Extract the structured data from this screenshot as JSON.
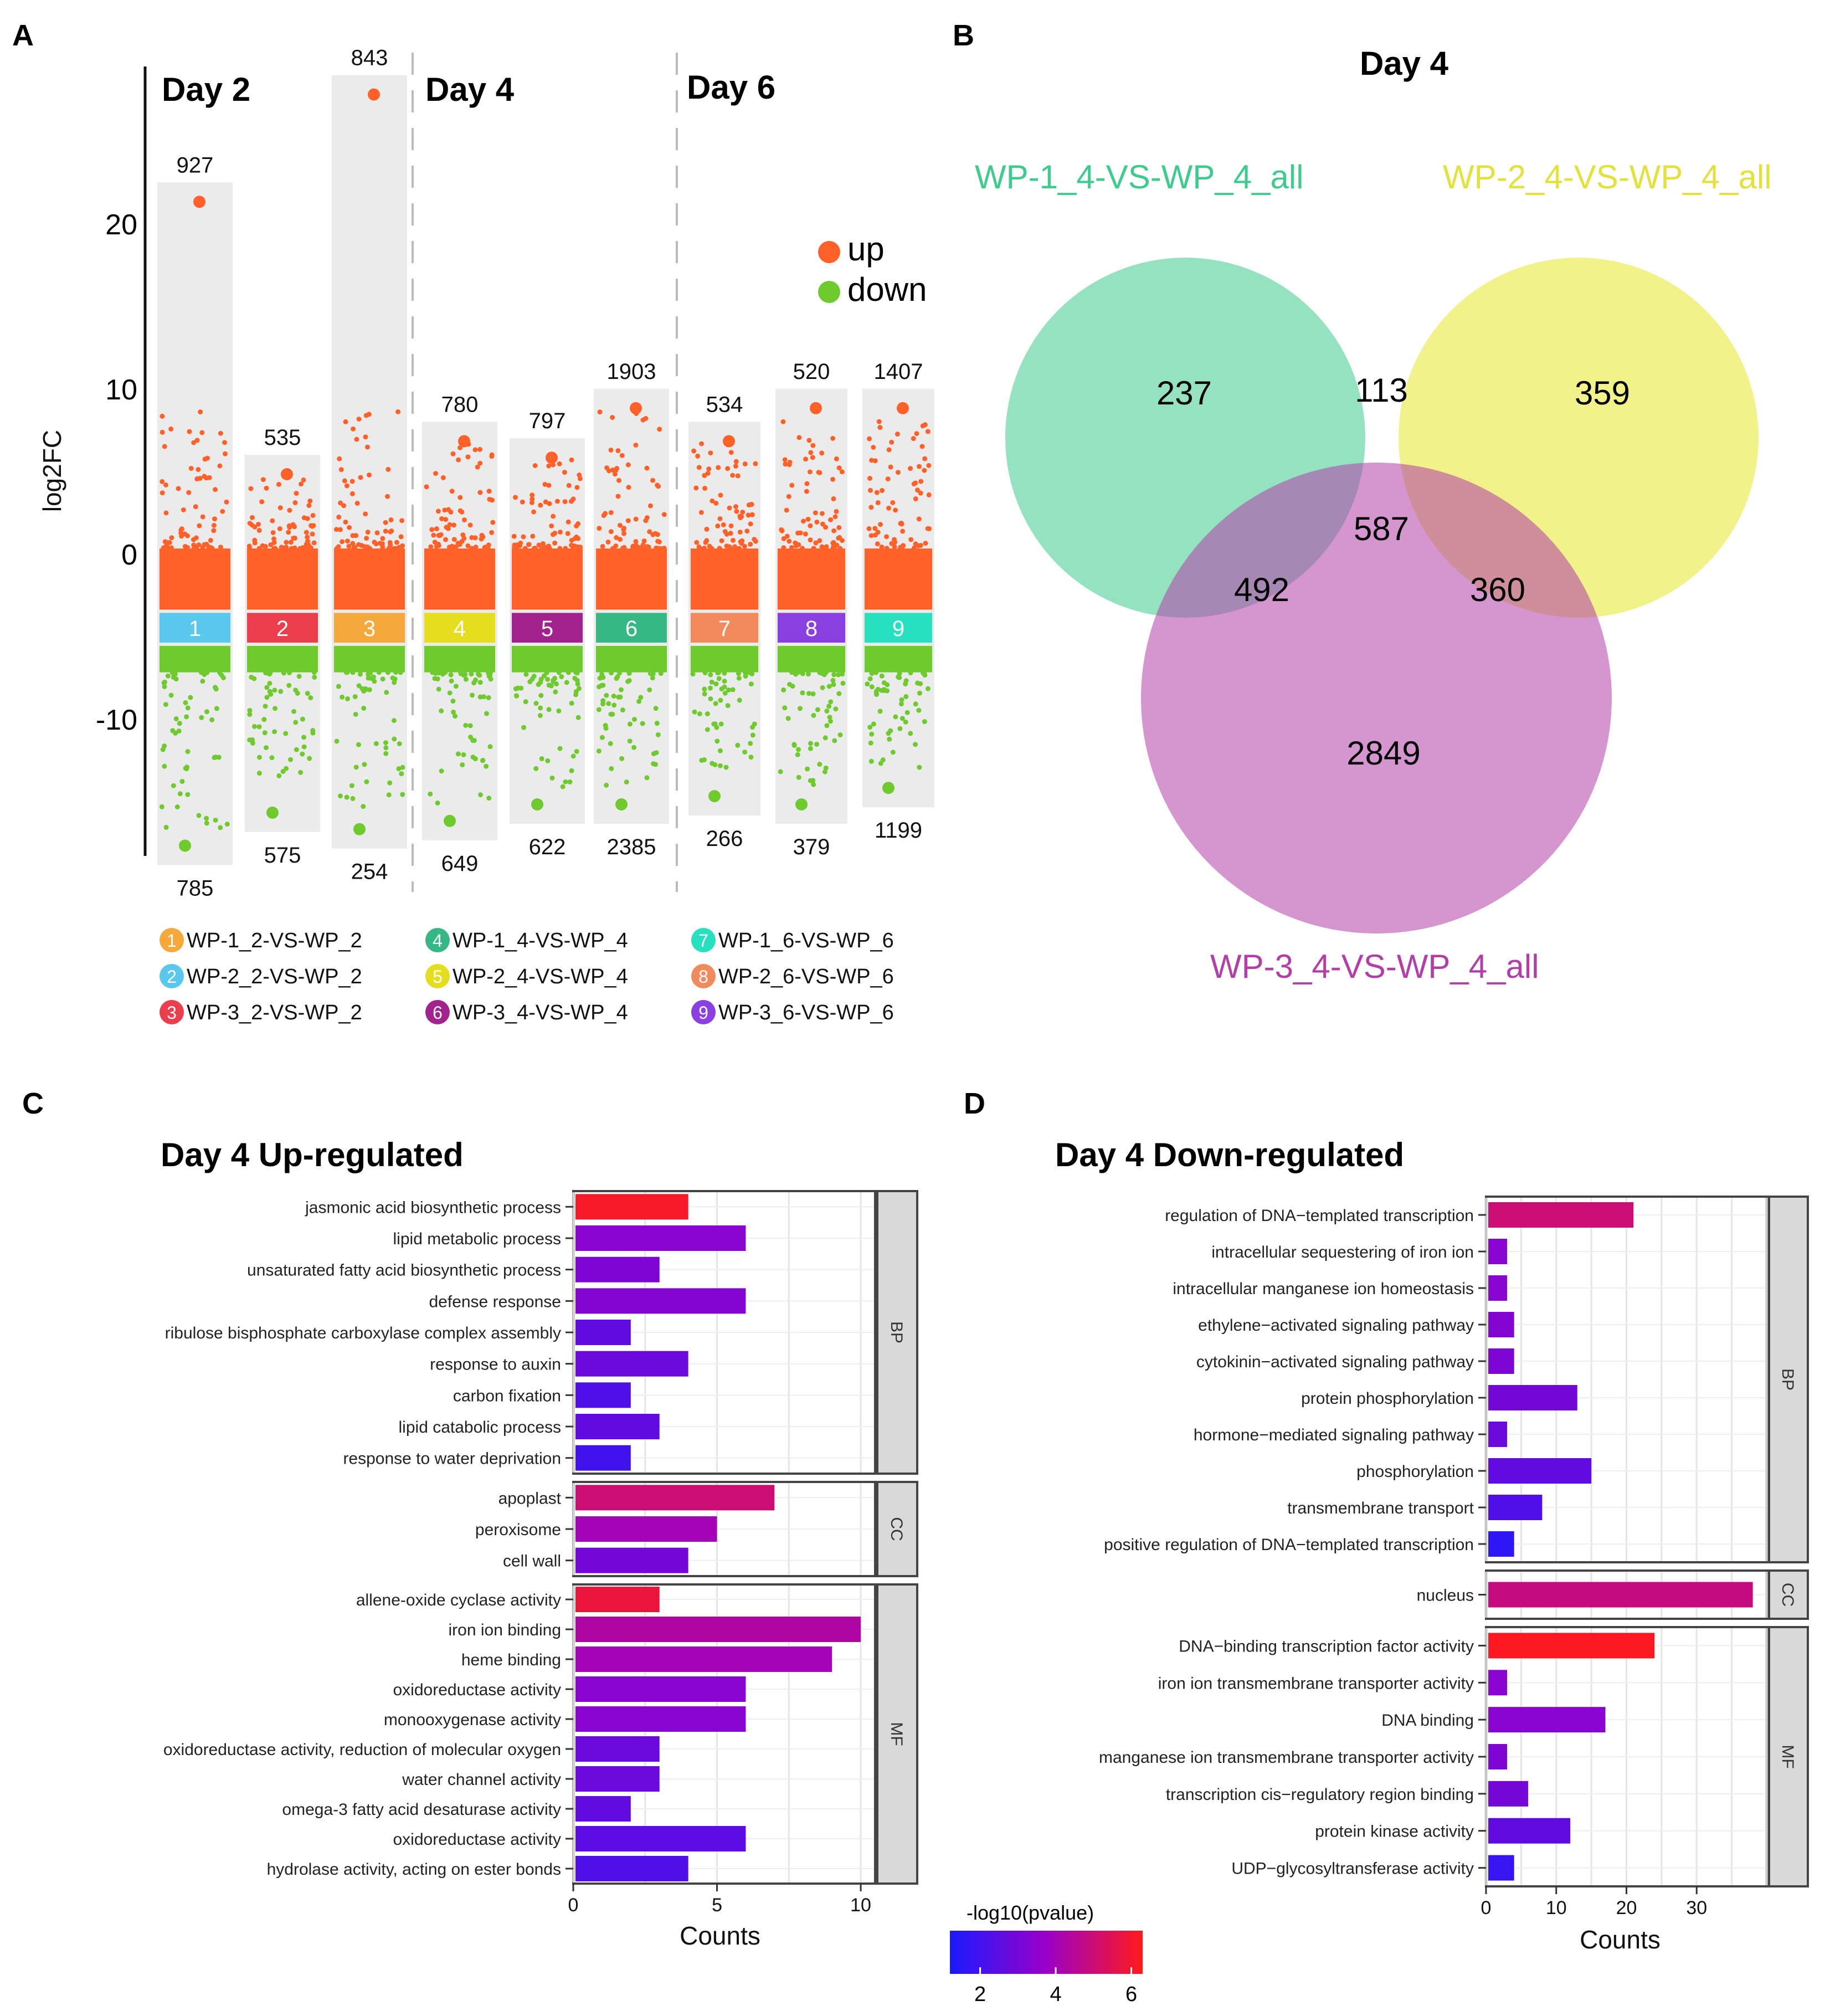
{
  "panels": {
    "A": "A",
    "B": "B",
    "C": "C",
    "D": "D"
  },
  "chart_data": [
    {
      "type": "scatter",
      "panel": "A",
      "ylabel": "log2FC",
      "yticks": [
        20,
        10,
        0,
        -10
      ],
      "ylim": [
        -18,
        30
      ],
      "day_labels": [
        "Day 2",
        "Day 4",
        "Day 6"
      ],
      "legend": [
        {
          "name": "up",
          "color": "#ff6128"
        },
        {
          "name": "down",
          "color": "#6fca2e"
        }
      ],
      "groups": [
        {
          "id": "1",
          "color": "#59c8ec",
          "up_count": "927",
          "down_count": "785",
          "max": 21.5,
          "min": -17.5
        },
        {
          "id": "2",
          "color": "#ea3e4c",
          "up_count": "535",
          "down_count": "575",
          "max": 5,
          "min": -15.5
        },
        {
          "id": "3",
          "color": "#f4a93a",
          "up_count": "843",
          "down_count": "254",
          "max": 28,
          "min": -16.5
        },
        {
          "id": "4",
          "color": "#e4de1e",
          "up_count": "780",
          "down_count": "649",
          "max": 7,
          "min": -16
        },
        {
          "id": "5",
          "color": "#a2228e",
          "up_count": "797",
          "down_count": "622",
          "max": 6,
          "min": -15
        },
        {
          "id": "6",
          "color": "#36b884",
          "up_count": "1903",
          "down_count": "2385",
          "max": 9,
          "min": -15
        },
        {
          "id": "7",
          "color": "#f18b5d",
          "up_count": "534",
          "down_count": "266",
          "max": 7,
          "min": -14.5
        },
        {
          "id": "8",
          "color": "#8a3fe0",
          "up_count": "520",
          "down_count": "379",
          "max": 9,
          "min": -15
        },
        {
          "id": "9",
          "color": "#26e0c0",
          "up_count": "1407",
          "down_count": "1199",
          "max": 9,
          "min": -14
        }
      ],
      "key": [
        {
          "num": "1",
          "color": "#f4a93a",
          "label": "WP-1_2-VS-WP_2"
        },
        {
          "num": "2",
          "color": "#59c8ec",
          "label": "WP-2_2-VS-WP_2"
        },
        {
          "num": "3",
          "color": "#ea3e4c",
          "label": "WP-3_2-VS-WP_2"
        },
        {
          "num": "4",
          "color": "#36b884",
          "label": "WP-1_4-VS-WP_4"
        },
        {
          "num": "5",
          "color": "#e4de1e",
          "label": "WP-2_4-VS-WP_4"
        },
        {
          "num": "6",
          "color": "#a2228e",
          "label": "WP-3_4-VS-WP_4"
        },
        {
          "num": "7",
          "color": "#26e0c0",
          "label": "WP-1_6-VS-WP_6"
        },
        {
          "num": "8",
          "color": "#f18b5d",
          "label": "WP-2_6-VS-WP_6"
        },
        {
          "num": "9",
          "color": "#8a3fe0",
          "label": "WP-3_6-VS-WP_6"
        }
      ]
    },
    {
      "type": "venn",
      "panel": "B",
      "title": "Day 4",
      "sets": [
        {
          "name": "WP-1_4-VS-WP_4_all",
          "color": "#3ecb8e",
          "label_color": "#3ecb8e"
        },
        {
          "name": "WP-2_4-VS-WP_4_all",
          "color": "#eaea3c",
          "label_color": "#e2e23a"
        },
        {
          "name": "WP-3_4-VS-WP_4_all",
          "color": "#b23ea8",
          "label_color": "#b23ea8"
        }
      ],
      "regions": {
        "only1": "237",
        "only2": "359",
        "only3": "2849",
        "r12": "113",
        "r13": "492",
        "r23": "360",
        "r123": "587"
      }
    },
    {
      "type": "bar",
      "panel": "C",
      "title": "Day 4 Up-regulated",
      "xlabel": "Counts",
      "xlim": [
        0,
        10.5
      ],
      "xticks": [
        0,
        5,
        10
      ],
      "facets": [
        {
          "name": "BP",
          "categories": [
            "jasmonic acid biosynthetic process",
            "lipid metabolic process",
            "unsaturated fatty acid biosynthetic process",
            "defense response",
            "ribulose bisphosphate carboxylase complex assembly",
            "response to auxin",
            "carbon fixation",
            "lipid catabolic process",
            "response to water deprivation"
          ],
          "values": [
            4,
            6,
            3,
            6,
            2,
            4,
            2,
            3,
            2
          ],
          "neglog10p": [
            6.1,
            3.4,
            3.2,
            3.3,
            2.6,
            2.8,
            2.3,
            2.6,
            2.0
          ]
        },
        {
          "name": "CC",
          "categories": [
            "apoplast",
            "peroxisome",
            "cell wall"
          ],
          "values": [
            7,
            5,
            4
          ],
          "neglog10p": [
            5.0,
            4.0,
            3.0
          ]
        },
        {
          "name": "MF",
          "categories": [
            "allene-oxide cyclase activity",
            "iron ion binding",
            "heme binding",
            "oxidoreductase activity",
            "monooxygenase activity",
            "oxidoreductase activity, reduction of molecular oxygen",
            "water channel activity",
            "omega-3 fatty acid desaturase activity",
            "oxidoreductase activity",
            "hydrolase activity, acting on ester bonds"
          ],
          "values": [
            3,
            10,
            9,
            6,
            6,
            3,
            3,
            2,
            6,
            4
          ],
          "neglog10p": [
            5.8,
            4.3,
            4.0,
            3.4,
            3.4,
            2.8,
            2.8,
            2.6,
            2.5,
            2.3
          ]
        }
      ]
    },
    {
      "type": "bar",
      "panel": "D",
      "title": "Day 4 Down-regulated",
      "xlabel": "Counts",
      "xlim": [
        0,
        40
      ],
      "xticks": [
        0,
        10,
        20,
        30
      ],
      "facets": [
        {
          "name": "BP",
          "categories": [
            "regulation of DNA−templated transcription",
            "intracellular sequestering of iron ion",
            "intracellular manganese ion homeostasis",
            "ethylene−activated signaling pathway",
            "cytokinin−activated signaling pathway",
            "protein phosphorylation",
            "hormone−mediated signaling pathway",
            "phosphorylation",
            "transmembrane transport",
            "positive regulation of DNA−templated transcription"
          ],
          "values": [
            21,
            3,
            3,
            4,
            4,
            13,
            3,
            15,
            8,
            4
          ],
          "neglog10p": [
            5.0,
            3.4,
            3.4,
            3.3,
            3.2,
            3.0,
            2.8,
            2.6,
            2.3,
            1.6
          ]
        },
        {
          "name": "CC",
          "categories": [
            "nucleus"
          ],
          "values": [
            38
          ],
          "neglog10p": [
            4.8
          ]
        },
        {
          "name": "MF",
          "categories": [
            "DNA−binding transcription factor activity",
            "iron ion transmembrane transporter activity",
            "DNA binding",
            "manganese ion transmembrane transporter activity",
            "transcription cis−regulatory region binding",
            "protein kinase activity",
            "UDP−glycosyltransferase activity"
          ],
          "values": [
            24,
            3,
            17,
            3,
            6,
            12,
            4
          ],
          "neglog10p": [
            6.2,
            3.4,
            3.4,
            3.2,
            3.0,
            2.6,
            1.8
          ]
        }
      ]
    }
  ],
  "colorbar": {
    "title": "-log10(pvalue)",
    "ticks": [
      "2",
      "4",
      "6"
    ],
    "min": 1.2,
    "max": 6.3
  }
}
